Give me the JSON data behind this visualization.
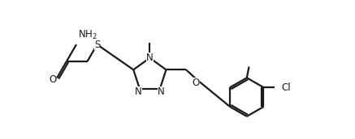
{
  "bg_color": "#ffffff",
  "line_color": "#1a1a1a",
  "line_width": 1.6,
  "font_size": 8.5,
  "figsize": [
    4.37,
    1.72
  ],
  "dpi": 100,
  "xlim": [
    0,
    11
  ],
  "ylim": [
    0,
    5
  ]
}
